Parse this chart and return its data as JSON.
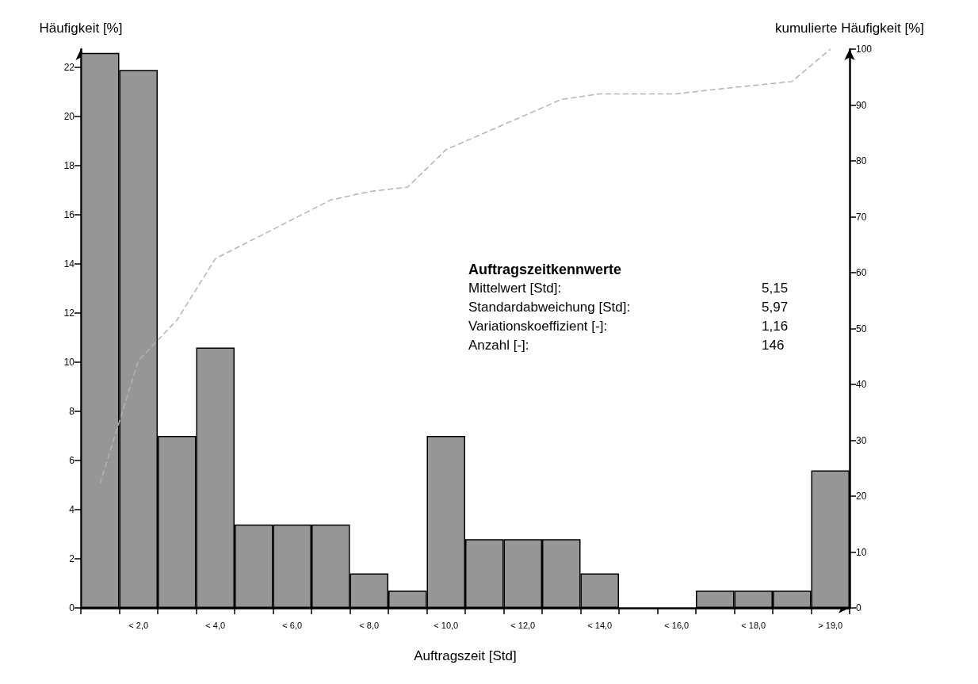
{
  "chart_data": {
    "type": "bar",
    "xlabel": "Auftragszeit [Std]",
    "ylabel": "Häufigkeit [%]",
    "y2label": "kumulierte Häufigkeit [%]",
    "categories": [
      null,
      "< 2,0",
      null,
      "< 4,0",
      null,
      "< 6,0",
      null,
      "< 8,0",
      null,
      "< 10,0",
      null,
      "< 12,0",
      null,
      "< 14,0",
      null,
      "< 16,0",
      null,
      "< 18,0",
      null,
      "> 19,0"
    ],
    "series": [
      {
        "color": "#969696",
        "values": [
          22.6,
          21.9,
          7.0,
          10.6,
          3.4,
          3.4,
          3.4,
          1.4,
          0.7,
          7.0,
          2.8,
          2.8,
          2.8,
          1.4,
          0,
          0,
          0.7,
          0.7,
          0.7,
          5.6
        ]
      },
      {
        "type": "line",
        "axis": "y2",
        "color": "#b4b4b4",
        "line_style": "dashed",
        "marker": "none",
        "values": [
          22.3,
          44.3,
          51.5,
          62.5,
          66,
          69.5,
          73,
          74.5,
          75.3,
          82,
          85,
          88,
          91,
          92,
          92,
          92,
          92.8,
          93.5,
          94.2,
          100
        ]
      }
    ],
    "ylim": [
      0,
      22.75
    ],
    "yticks": [
      0,
      2,
      4,
      6,
      8,
      10,
      12,
      14,
      16,
      18,
      20,
      22
    ],
    "y2lim": [
      0,
      100
    ],
    "y2ticks": [
      0,
      10,
      20,
      30,
      40,
      50,
      60,
      70,
      80,
      90,
      100
    ],
    "grid": false,
    "annotations": [
      "Auftragszeitkennwerte",
      "Mittelwert [Std]:",
      "5,15",
      "Standardabweichung [Std]:",
      "5,97",
      "Variationskoeffizient [-]:",
      "1,16",
      "Anzahl [-]:",
      "146"
    ]
  }
}
